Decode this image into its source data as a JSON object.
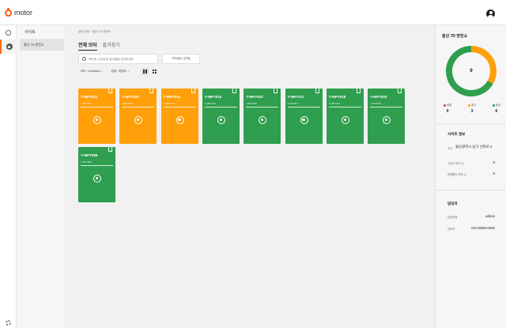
{
  "topbar": {
    "app_name": "motor"
  },
  "nav": {
    "section_title": "사이트",
    "selected_site": "울산 7D 변전소"
  },
  "main": {
    "breadcrumb": "설비 현장 > 울산 7D 변전소",
    "tabs": [
      "전체 모터",
      "즐겨찾기"
    ],
    "search_placeholder": "모터명, 사이트명 설비명을 검색하세요",
    "filter_button": "부하설비 (전체)",
    "filter_state": "모터 : Activated",
    "filter_sort": "정렬 : 위험도"
  },
  "cards": [
    {
      "name": "Y-MP7021",
      "sub": "Y-MP7021",
      "status": "warning"
    },
    {
      "name": "Y-MP7022",
      "sub": "Y-MP7022",
      "status": "warning"
    },
    {
      "name": "Y-MP7015",
      "sub": "Y-MP7015",
      "status": "warning"
    },
    {
      "name": "Y-MP7016",
      "sub": "Y-MP7016",
      "status": "normal"
    },
    {
      "name": "Y-MP7032",
      "sub": "Y-MP7032",
      "status": "normal"
    },
    {
      "name": "Y-MP7017",
      "sub": "Y-MP7017",
      "status": "normal"
    },
    {
      "name": "Y-MP7018",
      "sub": "Y-MP7018",
      "status": "normal"
    },
    {
      "name": "Y-MP7020",
      "sub": "Y-MP7020",
      "status": "normal"
    },
    {
      "name": "Y-MP7066",
      "sub": "Y-MP7066",
      "status": "normal"
    }
  ],
  "status_colors": {
    "warning": "#ffa00a",
    "normal": "#2f9e4f",
    "danger": "#e23b3b"
  },
  "summary": {
    "title": "울산 7D 변전소",
    "total": "9",
    "legend": [
      {
        "label": "위험",
        "count": "0",
        "color": "#e23b3b"
      },
      {
        "label": "경고",
        "count": "3",
        "color": "#ffa00a"
      },
      {
        "label": "정상",
        "count": "6",
        "color": "#2f9e4f"
      }
    ]
  },
  "site_info": {
    "title": "사이트 정보",
    "address_label": "주소",
    "address_value": "울산광역시 남구 선박로 2",
    "row1_label": "사이트 모터 수",
    "row1_value": "9",
    "row2_label": "운행중인 모터 수",
    "row2_value": "9"
  },
  "manager": {
    "title": "담당자",
    "name_label": "담당자명",
    "name_value": "admin",
    "phone_label": "연락처",
    "phone_value": "010-0000-0000"
  }
}
